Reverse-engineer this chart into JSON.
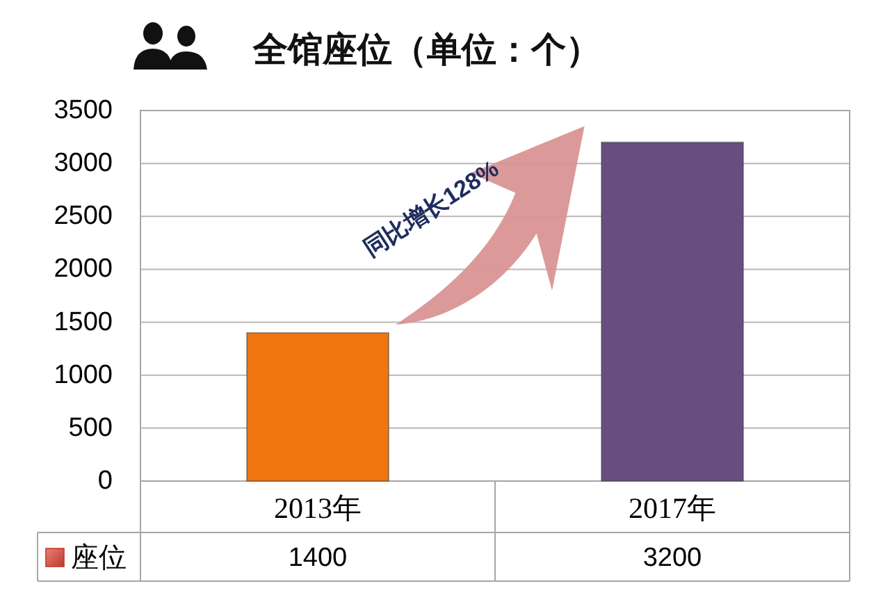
{
  "chart_data": {
    "type": "bar",
    "title": "全馆座位（单位：个）",
    "categories": [
      "2013年",
      "2017年"
    ],
    "series": [
      {
        "name": "座位",
        "color": "#c0392b",
        "colors": [
          "#f07510",
          "#684e80"
        ],
        "values": [
          1400,
          3200
        ]
      }
    ],
    "ylim": [
      0,
      3500
    ],
    "yticks": [
      0,
      500,
      1000,
      1500,
      2000,
      2500,
      3000,
      3500
    ],
    "grid": "y",
    "data_labels": true,
    "legend": "bottom left",
    "annotations": [
      "同比增长128%"
    ]
  }
}
